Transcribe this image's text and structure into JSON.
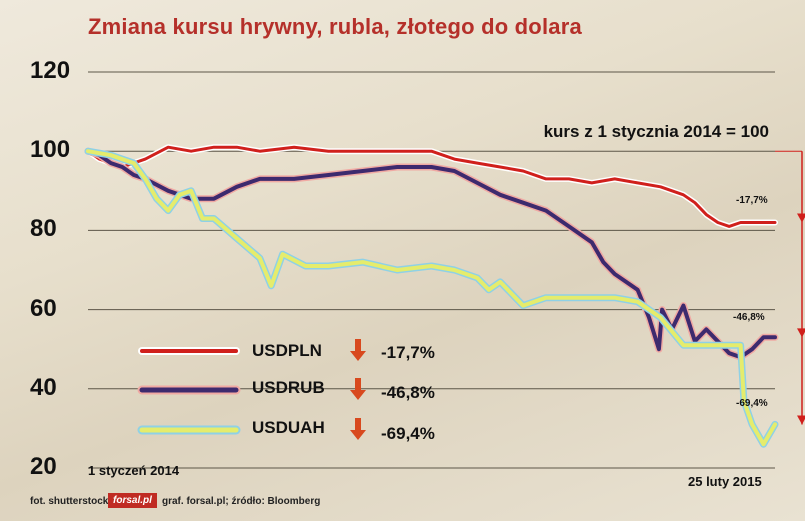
{
  "chart_data": {
    "type": "line",
    "title": "Zmiana kursu hrywny, rubla, złotego do dolara",
    "note": "kurs z 1 stycznia 2014 = 100",
    "x_start_label": "1 styczeń 2014",
    "x_end_label": "25 luty 2015",
    "x_start": "2014-01-01",
    "x_end": "2015-02-25",
    "ylim": [
      20,
      120
    ],
    "yticks": [
      20,
      40,
      60,
      80,
      100,
      120
    ],
    "series": [
      {
        "name": "USDPLN",
        "change": "-17,7%",
        "end_label": "-17,7%",
        "color": "#d0201c",
        "x": [
          "2014-01-01",
          "2014-01-08",
          "2014-01-15",
          "2014-01-22",
          "2014-02-05",
          "2014-02-19",
          "2014-03-05",
          "2014-03-19",
          "2014-04-02",
          "2014-04-16",
          "2014-05-07",
          "2014-05-28",
          "2014-06-18",
          "2014-07-09",
          "2014-07-30",
          "2014-08-13",
          "2014-08-27",
          "2014-09-10",
          "2014-09-24",
          "2014-10-08",
          "2014-10-22",
          "2014-11-05",
          "2014-11-19",
          "2014-12-03",
          "2014-12-17",
          "2014-12-31",
          "2015-01-07",
          "2015-01-14",
          "2015-01-21",
          "2015-01-28",
          "2015-02-04",
          "2015-02-11",
          "2015-02-18",
          "2015-02-25"
        ],
        "values": [
          100,
          98,
          97,
          96,
          98,
          101,
          100,
          101,
          101,
          100,
          101,
          100,
          100,
          100,
          100,
          98,
          97,
          96,
          95,
          93,
          93,
          92,
          93,
          92,
          91,
          89,
          87,
          84,
          82,
          81,
          82,
          82,
          82,
          82
        ]
      },
      {
        "name": "USDRUB",
        "change": "-46,8%",
        "end_label": "-46,8%",
        "color": "#3d2a6e",
        "x": [
          "2014-01-01",
          "2014-01-08",
          "2014-01-15",
          "2014-01-22",
          "2014-01-29",
          "2014-02-05",
          "2014-02-19",
          "2014-03-05",
          "2014-03-19",
          "2014-04-02",
          "2014-04-16",
          "2014-05-07",
          "2014-05-28",
          "2014-06-18",
          "2014-07-09",
          "2014-07-30",
          "2014-08-13",
          "2014-08-27",
          "2014-09-10",
          "2014-09-24",
          "2014-10-08",
          "2014-10-22",
          "2014-11-05",
          "2014-11-12",
          "2014-11-19",
          "2014-12-03",
          "2014-12-10",
          "2014-12-16",
          "2014-12-18",
          "2014-12-24",
          "2014-12-31",
          "2015-01-07",
          "2015-01-14",
          "2015-01-21",
          "2015-01-28",
          "2015-02-04",
          "2015-02-11",
          "2015-02-18",
          "2015-02-25"
        ],
        "values": [
          100,
          99,
          97,
          96,
          94,
          93,
          90,
          88,
          88,
          91,
          93,
          93,
          94,
          95,
          96,
          96,
          95,
          92,
          89,
          87,
          85,
          81,
          77,
          72,
          69,
          65,
          58,
          50,
          60,
          55,
          61,
          52,
          55,
          52,
          49,
          48,
          50,
          53,
          53
        ]
      },
      {
        "name": "USDUAH",
        "change": "-69,4%",
        "end_label": "-69,4%",
        "color": "#e5ec6c",
        "x": [
          "2014-01-01",
          "2014-01-15",
          "2014-01-29",
          "2014-02-05",
          "2014-02-12",
          "2014-02-19",
          "2014-02-26",
          "2014-03-05",
          "2014-03-12",
          "2014-03-19",
          "2014-04-02",
          "2014-04-16",
          "2014-04-23",
          "2014-04-30",
          "2014-05-14",
          "2014-05-28",
          "2014-06-18",
          "2014-07-09",
          "2014-07-30",
          "2014-08-13",
          "2014-08-27",
          "2014-09-03",
          "2014-09-10",
          "2014-09-24",
          "2014-10-08",
          "2014-10-22",
          "2014-11-05",
          "2014-11-19",
          "2014-12-03",
          "2014-12-17",
          "2014-12-31",
          "2015-01-14",
          "2015-01-28",
          "2015-02-04",
          "2015-02-06",
          "2015-02-11",
          "2015-02-18",
          "2015-02-25"
        ],
        "values": [
          100,
          99,
          97,
          93,
          88,
          85,
          89,
          90,
          83,
          83,
          78,
          73,
          66,
          74,
          71,
          71,
          72,
          70,
          71,
          70,
          68,
          65,
          67,
          61,
          63,
          63,
          63,
          63,
          62,
          58,
          51,
          51,
          51,
          51,
          37,
          31,
          26,
          31
        ]
      }
    ]
  },
  "footer": {
    "photo": "fot. shutterstock",
    "logo": "forsal.pl",
    "credits": "graf. forsal.pl;  źródło: Bloomberg"
  }
}
